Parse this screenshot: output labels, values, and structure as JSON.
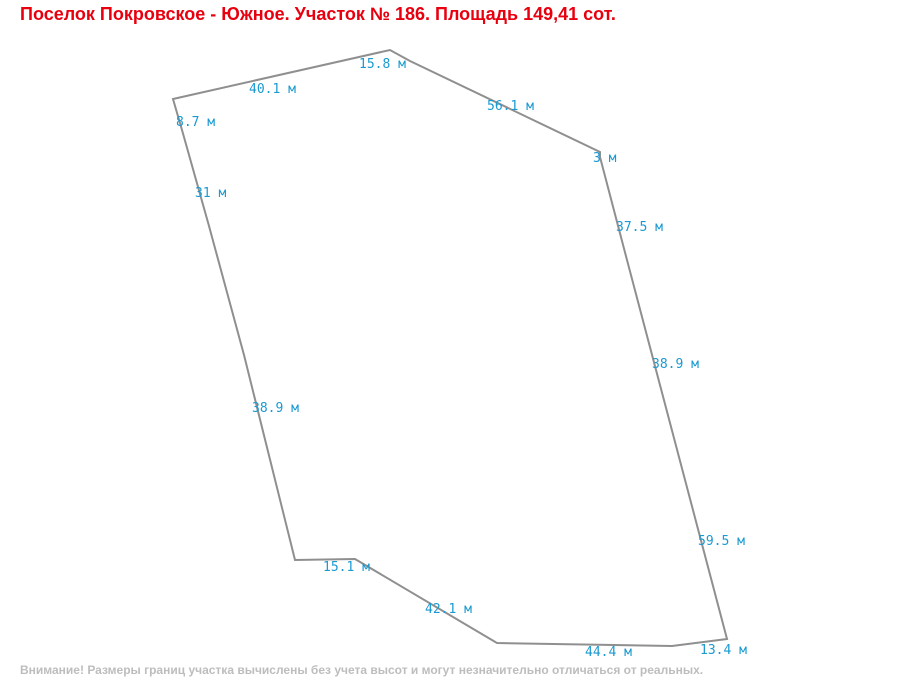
{
  "title": "Поселок Покровское - Южное. Участок № 186. Площадь 149,41 сот.",
  "colors": {
    "title": "#e8000f",
    "labels": "#1a9ad1",
    "boundary": "#8f8f8f",
    "note": "#bdbdbd"
  },
  "segments": [
    "40.1 м",
    "15.8 м",
    "56.1 м",
    "3 м",
    "37.5 м",
    "38.9 м",
    "59.5 м",
    "13.4 м",
    "44.4 м",
    "42.1 м",
    "15.1 м",
    "38.9 м",
    "31 м",
    "8.7 м"
  ],
  "note": "Внимание! Размеры границ участка вычислены без учета высот и могут незначительно отличаться от реальных."
}
